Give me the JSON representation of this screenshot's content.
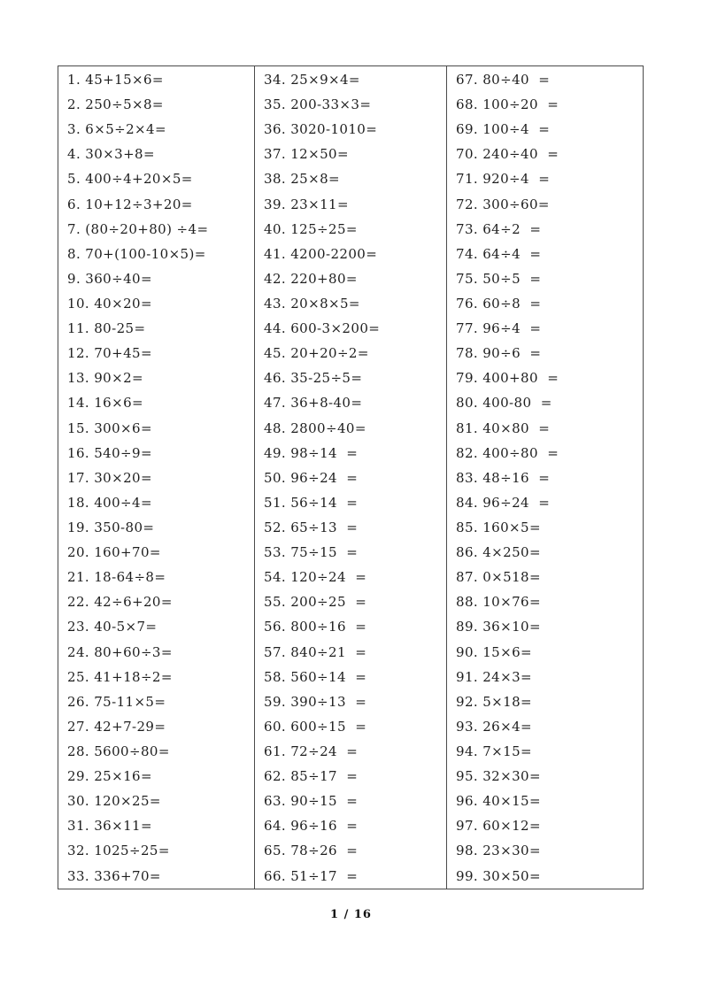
{
  "worksheet": {
    "columns": [
      {
        "problems": [
          "1. 45+15×6=",
          "2. 250÷5×8=",
          "3. 6×5÷2×4=",
          "4. 30×3+8=",
          "5. 400÷4+20×5=",
          "6. 10+12÷3+20=",
          "7. (80÷20+80) ÷4=",
          "8. 70+(100-10×5)=",
          "9. 360÷40=",
          "10. 40×20=",
          "11. 80-25=",
          "12. 70+45=",
          "13. 90×2=",
          "14. 16×6=",
          "15. 300×6=",
          "16. 540÷9=",
          "17. 30×20=",
          "18. 400÷4=",
          "19. 350-80=",
          "20. 160+70=",
          "21. 18-64÷8=",
          "22. 42÷6+20=",
          "23. 40-5×7=",
          "24. 80+60÷3=",
          "25. 41+18÷2=",
          "26. 75-11×5=",
          "27. 42+7-29=",
          "28. 5600÷80=",
          "29. 25×16=",
          "30. 120×25=",
          "31. 36×11=",
          "32. 1025÷25=",
          "33. 336+70="
        ]
      },
      {
        "problems": [
          "34. 25×9×4=",
          "35. 200-33×3=",
          "36. 3020-1010=",
          "37. 12×50=",
          "38. 25×8=",
          "39. 23×11=",
          "40. 125÷25=",
          "41. 4200-2200=",
          "42. 220+80=",
          "43. 20×8×5=",
          "44. 600-3×200=",
          "45. 20+20÷2=",
          "46. 35-25÷5=",
          "47. 36+8-40=",
          "48. 2800÷40=",
          "49. 98÷14  =",
          "50. 96÷24  =",
          "51. 56÷14  =",
          "52. 65÷13  =",
          "53. 75÷15  =",
          "54. 120÷24  =",
          "55. 200÷25  =",
          "56. 800÷16  =",
          "57. 840÷21  =",
          "58. 560÷14  =",
          "59. 390÷13  =",
          "60. 600÷15  =",
          "61. 72÷24  =",
          "62. 85÷17  =",
          "63. 90÷15  =",
          "64. 96÷16  =",
          "65. 78÷26  =",
          "66. 51÷17  ="
        ]
      },
      {
        "problems": [
          "67. 80÷40  =",
          "68. 100÷20  =",
          "69. 100÷4  =",
          "70. 240÷40  =",
          "71. 920÷4  =",
          "72. 300÷60=",
          "73. 64÷2  =",
          "74. 64÷4  =",
          "75. 50÷5  =",
          "76. 60÷8  =",
          "77. 96÷4  =",
          "78. 90÷6  =",
          "79. 400+80  =",
          "80. 400-80  =",
          "81. 40×80  =",
          "82. 400÷80  =",
          "83. 48÷16  =",
          "84. 96÷24  =",
          "85. 160×5=",
          "86. 4×250=",
          "87. 0×518=",
          "88. 10×76=",
          "89. 36×10=",
          "90. 15×6=",
          "91. 24×3=",
          "92. 5×18=",
          "93. 26×4=",
          "94. 7×15=",
          "95. 32×30=",
          "96. 40×15=",
          "97. 60×12=",
          "98. 23×30=",
          "99. 30×50="
        ]
      }
    ]
  },
  "footer": {
    "page_number": "1 / 16"
  }
}
